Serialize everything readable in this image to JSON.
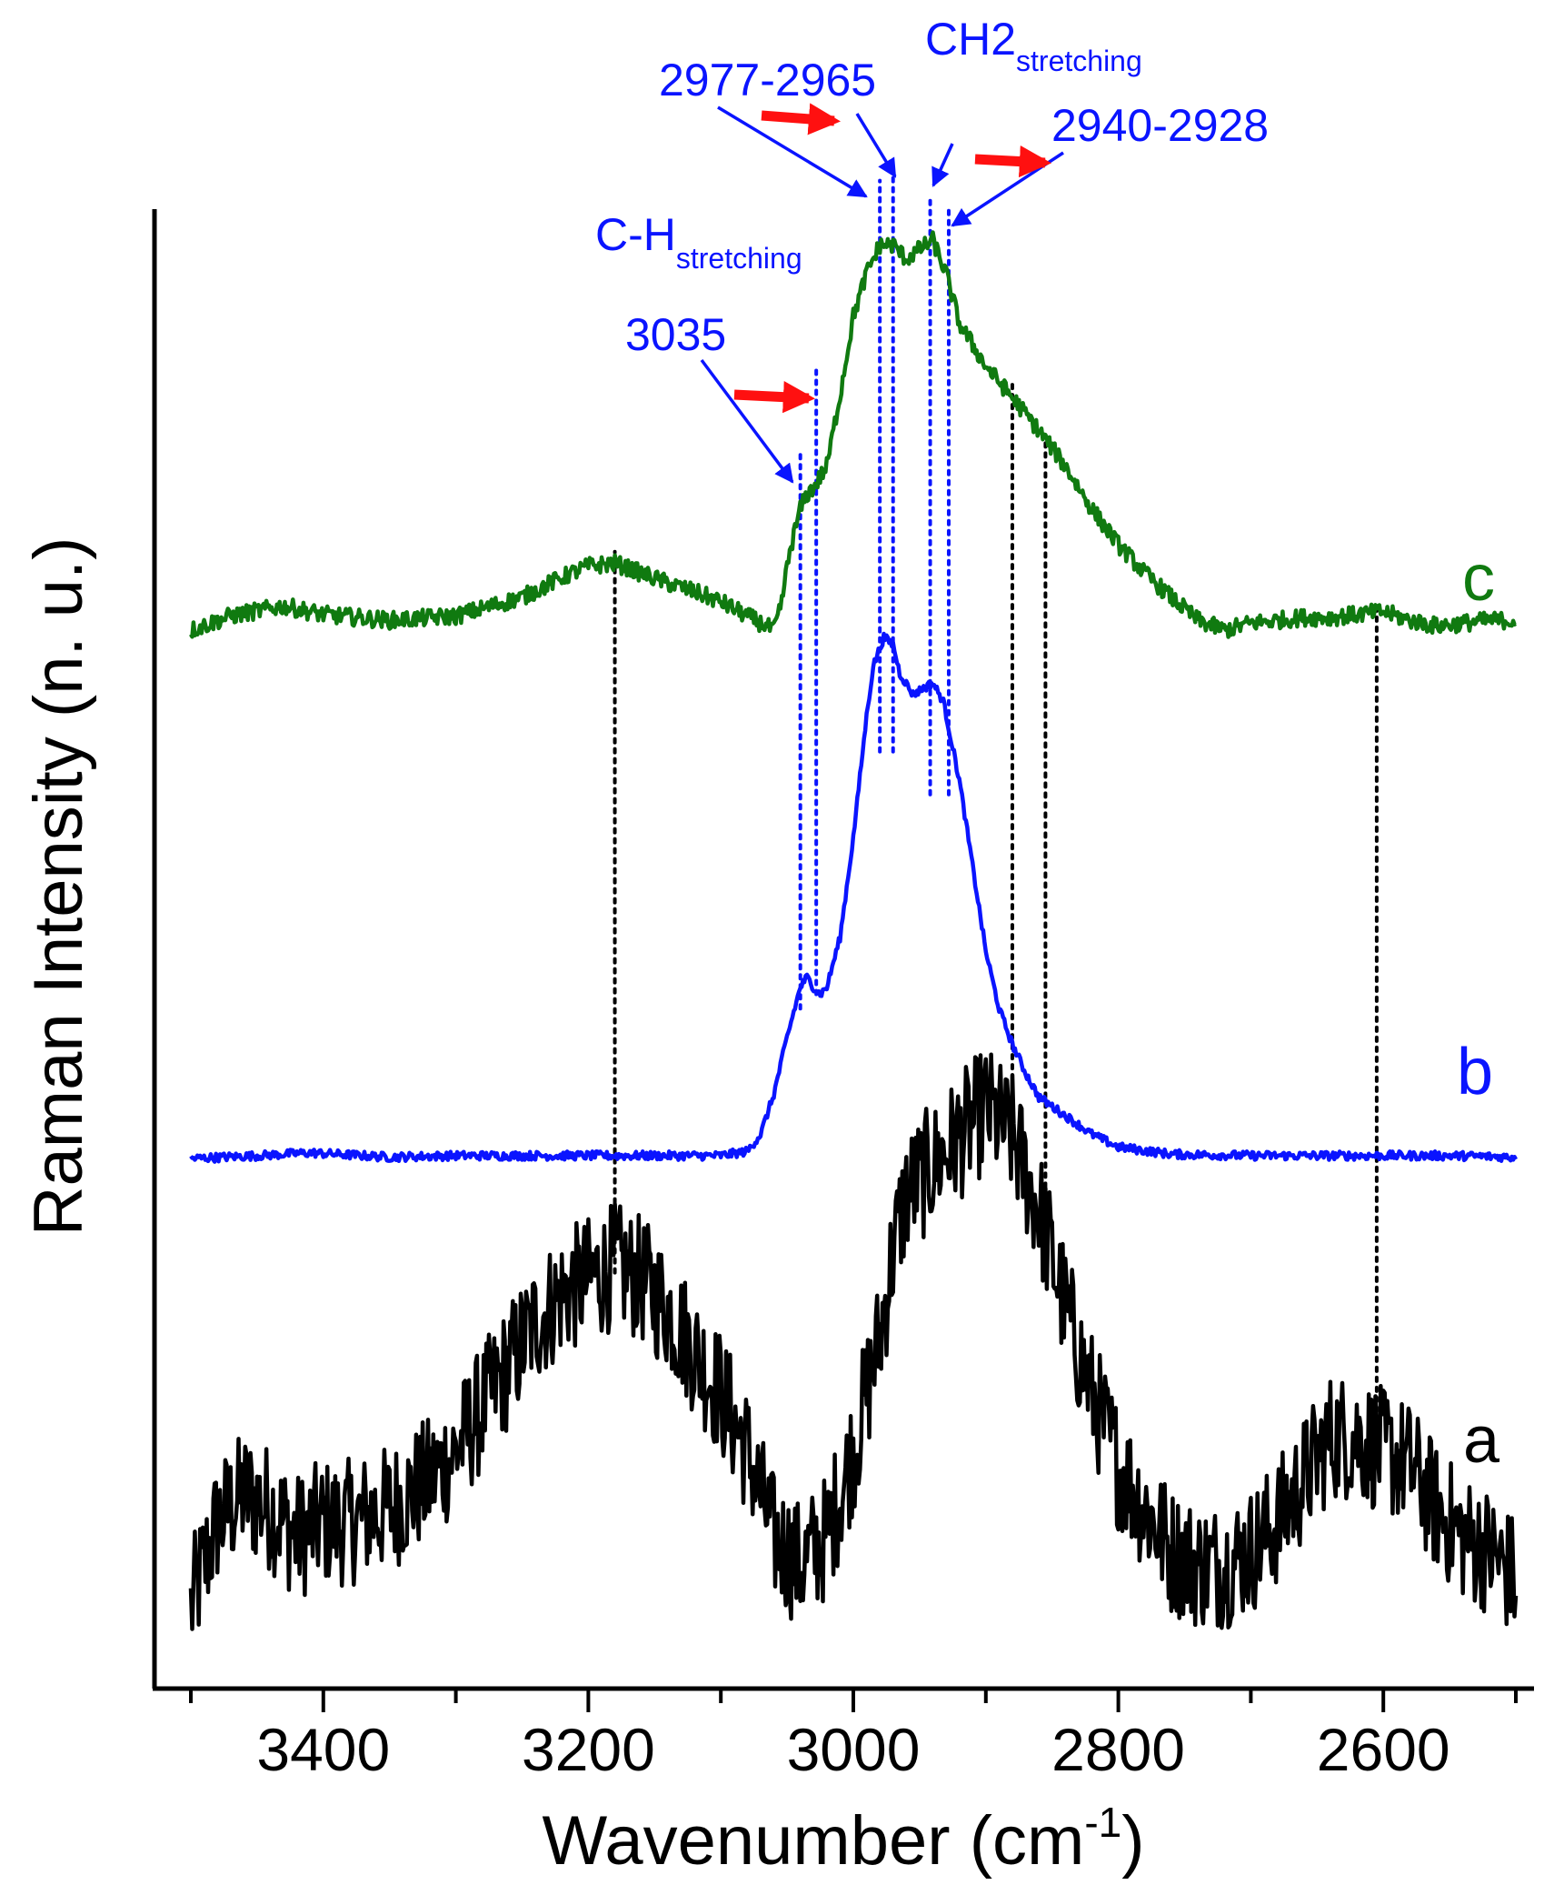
{
  "chart_data": {
    "type": "line",
    "xlabel": "Wavenumber (cm",
    "xlabel_sup": "-1",
    "xlabel_close": ")",
    "ylabel": "Raman Intensity (n. u.)",
    "xlim": [
      3500,
      2500
    ],
    "x_reversed": true,
    "ylim": [
      0,
      1
    ],
    "y_ticks_shown": false,
    "grid": false,
    "x_major_ticks": [
      3400,
      3200,
      3000,
      2800,
      2600
    ],
    "x_tick_labels": [
      "3400",
      "3200",
      "3000",
      "2800",
      "2600"
    ],
    "series": [
      {
        "name": "a",
        "color": "#000000",
        "noise": 0.045,
        "points": [
          [
            3500,
            0.02
          ],
          [
            3480,
            0.08
          ],
          [
            3460,
            0.1
          ],
          [
            3440,
            0.09
          ],
          [
            3420,
            0.07
          ],
          [
            3400,
            0.08
          ],
          [
            3380,
            0.08
          ],
          [
            3350,
            0.09
          ],
          [
            3320,
            0.11
          ],
          [
            3300,
            0.13
          ],
          [
            3280,
            0.16
          ],
          [
            3260,
            0.19
          ],
          [
            3240,
            0.22
          ],
          [
            3220,
            0.24
          ],
          [
            3200,
            0.25
          ],
          [
            3180,
            0.26
          ],
          [
            3160,
            0.25
          ],
          [
            3140,
            0.23
          ],
          [
            3120,
            0.2
          ],
          [
            3100,
            0.17
          ],
          [
            3080,
            0.13
          ],
          [
            3060,
            0.07
          ],
          [
            3040,
            0.05
          ],
          [
            3020,
            0.07
          ],
          [
            3000,
            0.13
          ],
          [
            2990,
            0.17
          ],
          [
            2980,
            0.21
          ],
          [
            2970,
            0.27
          ],
          [
            2960,
            0.31
          ],
          [
            2940,
            0.33
          ],
          [
            2920,
            0.35
          ],
          [
            2900,
            0.37
          ],
          [
            2880,
            0.35
          ],
          [
            2860,
            0.3
          ],
          [
            2840,
            0.23
          ],
          [
            2820,
            0.17
          ],
          [
            2800,
            0.12
          ],
          [
            2780,
            0.09
          ],
          [
            2760,
            0.06
          ],
          [
            2740,
            0.05
          ],
          [
            2720,
            0.05
          ],
          [
            2700,
            0.06
          ],
          [
            2680,
            0.08
          ],
          [
            2660,
            0.11
          ],
          [
            2640,
            0.14
          ],
          [
            2620,
            0.14
          ],
          [
            2600,
            0.13
          ],
          [
            2580,
            0.12
          ],
          [
            2560,
            0.09
          ],
          [
            2540,
            0.07
          ],
          [
            2520,
            0.06
          ],
          [
            2500,
            0.04
          ]
        ]
      },
      {
        "name": "b",
        "color": "#0a14ff",
        "noise": 0.003,
        "points": [
          [
            3500,
            0.335
          ],
          [
            3450,
            0.337
          ],
          [
            3410,
            0.339
          ],
          [
            3350,
            0.336
          ],
          [
            3300,
            0.337
          ],
          [
            3250,
            0.337
          ],
          [
            3200,
            0.337
          ],
          [
            3150,
            0.337
          ],
          [
            3100,
            0.337
          ],
          [
            3080,
            0.34
          ],
          [
            3070,
            0.352
          ],
          [
            3060,
            0.38
          ],
          [
            3050,
            0.42
          ],
          [
            3040,
            0.455
          ],
          [
            3035,
            0.462
          ],
          [
            3030,
            0.455
          ],
          [
            3025,
            0.45
          ],
          [
            3020,
            0.455
          ],
          [
            3010,
            0.49
          ],
          [
            3000,
            0.56
          ],
          [
            2990,
            0.645
          ],
          [
            2985,
            0.68
          ],
          [
            2977,
            0.7
          ],
          [
            2970,
            0.695
          ],
          [
            2965,
            0.675
          ],
          [
            2955,
            0.66
          ],
          [
            2948,
            0.664
          ],
          [
            2940,
            0.668
          ],
          [
            2932,
            0.655
          ],
          [
            2920,
            0.6
          ],
          [
            2910,
            0.54
          ],
          [
            2900,
            0.48
          ],
          [
            2890,
            0.44
          ],
          [
            2880,
            0.415
          ],
          [
            2870,
            0.395
          ],
          [
            2860,
            0.378
          ],
          [
            2840,
            0.365
          ],
          [
            2820,
            0.352
          ],
          [
            2800,
            0.343
          ],
          [
            2760,
            0.338
          ],
          [
            2700,
            0.337
          ],
          [
            2650,
            0.337
          ],
          [
            2600,
            0.337
          ],
          [
            2550,
            0.337
          ],
          [
            2500,
            0.336
          ]
        ]
      },
      {
        "name": "c",
        "color": "#107a10",
        "noise": 0.006,
        "points": [
          [
            3500,
            0.705
          ],
          [
            3470,
            0.715
          ],
          [
            3430,
            0.722
          ],
          [
            3400,
            0.716
          ],
          [
            3350,
            0.712
          ],
          [
            3300,
            0.715
          ],
          [
            3250,
            0.728
          ],
          [
            3220,
            0.742
          ],
          [
            3200,
            0.75
          ],
          [
            3180,
            0.752
          ],
          [
            3160,
            0.745
          ],
          [
            3140,
            0.738
          ],
          [
            3120,
            0.732
          ],
          [
            3100,
            0.725
          ],
          [
            3080,
            0.715
          ],
          [
            3060,
            0.705
          ],
          [
            3055,
            0.72
          ],
          [
            3048,
            0.76
          ],
          [
            3040,
            0.79
          ],
          [
            3035,
            0.8
          ],
          [
            3030,
            0.805
          ],
          [
            3020,
            0.82
          ],
          [
            3010,
            0.87
          ],
          [
            3000,
            0.925
          ],
          [
            2990,
            0.955
          ],
          [
            2980,
            0.975
          ],
          [
            2970,
            0.975
          ],
          [
            2960,
            0.965
          ],
          [
            2950,
            0.972
          ],
          [
            2940,
            0.978
          ],
          [
            2930,
            0.955
          ],
          [
            2920,
            0.92
          ],
          [
            2900,
            0.89
          ],
          [
            2880,
            0.868
          ],
          [
            2860,
            0.845
          ],
          [
            2840,
            0.82
          ],
          [
            2820,
            0.79
          ],
          [
            2800,
            0.765
          ],
          [
            2780,
            0.745
          ],
          [
            2760,
            0.728
          ],
          [
            2740,
            0.712
          ],
          [
            2720,
            0.705
          ],
          [
            2700,
            0.71
          ],
          [
            2680,
            0.712
          ],
          [
            2660,
            0.714
          ],
          [
            2640,
            0.714
          ],
          [
            2620,
            0.716
          ],
          [
            2600,
            0.718
          ],
          [
            2580,
            0.712
          ],
          [
            2560,
            0.708
          ],
          [
            2540,
            0.71
          ],
          [
            2520,
            0.712
          ],
          [
            2500,
            0.712
          ]
        ]
      }
    ],
    "black_reference_lines": [
      {
        "x": 3180,
        "y_from": 0.255,
        "y_to": 0.76
      },
      {
        "x": 2880,
        "y_from": 0.37,
        "y_to": 0.88
      },
      {
        "x": 2855,
        "y_from": 0.28,
        "y_to": 0.84
      },
      {
        "x": 2605,
        "y_from": 0.13,
        "y_to": 0.72
      }
    ],
    "blue_reference_lines": [
      {
        "x": 3040,
        "y_from": 0.44,
        "y_to": 0.83
      },
      {
        "x": 3028,
        "y_from": 0.45,
        "y_to": 0.89
      },
      {
        "x": 2980,
        "y_from": 0.62,
        "y_to": 1.02
      },
      {
        "x": 2970,
        "y_from": 0.62,
        "y_to": 1.03
      },
      {
        "x": 2942,
        "y_from": 0.59,
        "y_to": 1.01
      },
      {
        "x": 2928,
        "y_from": 0.59,
        "y_to": 1.0
      }
    ],
    "annotations": {
      "ch_main": "C-H",
      "ch_sub": "stretching",
      "label_3035": "3035",
      "label_2977": "2977-2965",
      "ch2_main": "CH2",
      "ch2_sub": "stretching",
      "label_2940": "2940-2928"
    },
    "curve_labels": {
      "a": "a",
      "b": "b",
      "c": "c"
    },
    "shift_arrow_color": "#ff1010",
    "annotation_color": "#0a14ff"
  }
}
